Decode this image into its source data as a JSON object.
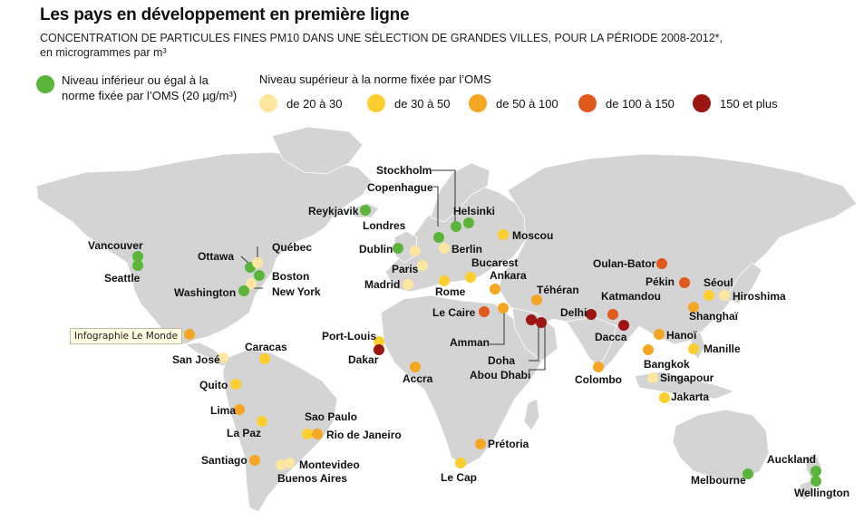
{
  "title": "Les pays en développement en première ligne",
  "subtitle_line1": "CONCENTRATION DE PARTICULES FINES PM10 DANS UNE SÉLECTION DE GRANDES VILLES, POUR LA PÉRIODE 2008-2012*,",
  "subtitle_line2": "en microgrammes par m³",
  "legend": {
    "ok_label": "Niveau inférieur ou égal à la norme fixée par l’OMS (20 µg/m³)",
    "ok_color": "#5bb53b",
    "above_heading": "Niveau supérieur à la norme fixée par l’OMS",
    "levels": [
      {
        "label": "de 20 à 30",
        "color": "#fde6a0"
      },
      {
        "label": "de 30 à 50",
        "color": "#fccf2e"
      },
      {
        "label": "de 50 à 100",
        "color": "#f5a623"
      },
      {
        "label": "de 100 à 150",
        "color": "#e05a1c"
      },
      {
        "label": "150 et plus",
        "color": "#9b1512"
      }
    ]
  },
  "tooltip": "Infographie Le Monde",
  "colors": {
    "land": "#d4d4d4",
    "ocean": "#ffffff"
  },
  "cities": [
    {
      "name": "Vancouver",
      "level": "ok"
    },
    {
      "name": "Seattle",
      "level": "ok"
    },
    {
      "name": "Ottawa",
      "level": "ok"
    },
    {
      "name": "Québec",
      "level": "20-30"
    },
    {
      "name": "Boston",
      "level": "ok"
    },
    {
      "name": "New York",
      "level": "20-30"
    },
    {
      "name": "Washington",
      "level": "ok"
    },
    {
      "name": "San José",
      "level": "20-30"
    },
    {
      "name": "Caracas",
      "level": "30-50"
    },
    {
      "name": "Quito",
      "level": "30-50"
    },
    {
      "name": "Lima",
      "level": "50-100"
    },
    {
      "name": "La Paz",
      "level": "30-50"
    },
    {
      "name": "Sao Paulo",
      "level": "30-50"
    },
    {
      "name": "Rio de Janeiro",
      "level": "50-100"
    },
    {
      "name": "Santiago",
      "level": "50-100"
    },
    {
      "name": "Montevideo",
      "level": "20-30"
    },
    {
      "name": "Buenos Aires",
      "level": "20-30"
    },
    {
      "name": "Reykjavik",
      "level": "ok"
    },
    {
      "name": "Dublin",
      "level": "ok"
    },
    {
      "name": "Londres",
      "level": "20-30"
    },
    {
      "name": "Paris",
      "level": "20-30"
    },
    {
      "name": "Madrid",
      "level": "20-30"
    },
    {
      "name": "Stockholm",
      "level": "ok"
    },
    {
      "name": "Copenhague",
      "level": "ok"
    },
    {
      "name": "Helsinki",
      "level": "ok"
    },
    {
      "name": "Berlin",
      "level": "20-30"
    },
    {
      "name": "Rome",
      "level": "30-50"
    },
    {
      "name": "Bucarest",
      "level": "30-50"
    },
    {
      "name": "Ankara",
      "level": "50-100"
    },
    {
      "name": "Moscou",
      "level": "30-50"
    },
    {
      "name": "Le Caire",
      "level": "100-150"
    },
    {
      "name": "Amman",
      "level": "50-100"
    },
    {
      "name": "Téhéran",
      "level": "50-100"
    },
    {
      "name": "Doha",
      "level": "150+"
    },
    {
      "name": "Abou Dhabi",
      "level": "150+"
    },
    {
      "name": "Port-Louis",
      "level": "30-50"
    },
    {
      "name": "Dakar",
      "level": "150+"
    },
    {
      "name": "Accra",
      "level": "50-100"
    },
    {
      "name": "Prétoria",
      "level": "50-100"
    },
    {
      "name": "Le Cap",
      "level": "30-50"
    },
    {
      "name": "Delhi",
      "level": "150+"
    },
    {
      "name": "Katmandou",
      "level": "100-150"
    },
    {
      "name": "Dacca",
      "level": "150+"
    },
    {
      "name": "Colombo",
      "level": "50-100"
    },
    {
      "name": "Oulan-Bator",
      "level": "100-150"
    },
    {
      "name": "Pékin",
      "level": "100-150"
    },
    {
      "name": "Séoul",
      "level": "30-50"
    },
    {
      "name": "Hiroshima",
      "level": "20-30"
    },
    {
      "name": "Shanghaï",
      "level": "50-100"
    },
    {
      "name": "Hanoï",
      "level": "50-100"
    },
    {
      "name": "Manille",
      "level": "30-50"
    },
    {
      "name": "Bangkok",
      "level": "50-100"
    },
    {
      "name": "Singapour",
      "level": "20-30"
    },
    {
      "name": "Jakarta",
      "level": "30-50"
    },
    {
      "name": "Auckland",
      "level": "ok"
    },
    {
      "name": "Wellington",
      "level": "ok"
    },
    {
      "name": "Melbourne",
      "level": "ok"
    }
  ]
}
